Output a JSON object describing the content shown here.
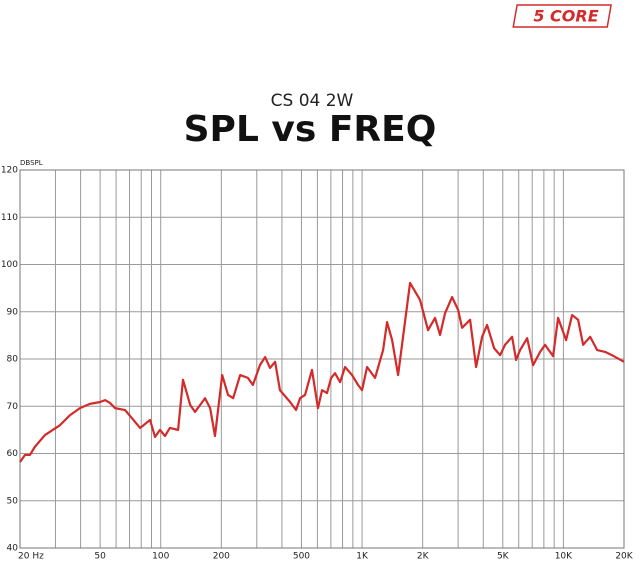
{
  "logo": "5 CORE",
  "chart_data": {
    "type": "line",
    "subtitle": "CS 04 2W",
    "title": "SPL vs FREQ",
    "y_label": "DBSPL",
    "xscale": "log",
    "grid": true,
    "xlim": [
      20,
      20000
    ],
    "ylim": [
      40,
      120
    ],
    "yticks": [
      40,
      50,
      60,
      70,
      80,
      90,
      100,
      110,
      120
    ],
    "xticks": [
      {
        "value": 20,
        "label": "20 Hz"
      },
      50,
      100,
      200,
      500,
      {
        "value": 1000,
        "label": "1K"
      },
      {
        "value": 2000,
        "label": "2K"
      },
      {
        "value": 5000,
        "label": "5K"
      },
      {
        "value": 10000,
        "label": "10K"
      },
      {
        "value": 20000,
        "label": "20K"
      }
    ],
    "xminorticks": [
      30,
      40,
      60,
      70,
      80,
      90,
      300,
      400,
      600,
      700,
      800,
      900,
      3000,
      4000,
      6000,
      7000,
      8000,
      9000
    ],
    "x": [
      20,
      21.2,
      22.4,
      23.7,
      26.6,
      31.6,
      35.4,
      39.7,
      44.5,
      50,
      52.9,
      56,
      59.3,
      66.5,
      74.5,
      79,
      88.5,
      93.7,
      99.2,
      105,
      111,
      122,
      129,
      140,
      148,
      166,
      176,
      186,
      202,
      216,
      229,
      248,
      271,
      287,
      311,
      330,
      349,
      370,
      391,
      439,
      470,
      492,
      521,
      564,
      604,
      633,
      670,
      702,
      734,
      778,
      823,
      892,
      956,
      1000,
      1059,
      1160,
      1272,
      1331,
      1410,
      1510,
      1731,
      1941,
      2127,
      2304,
      2440,
      2584,
      2800,
      3000,
      3139,
      3440,
      3685,
      3947,
      4178,
      4526,
      4849,
      5132,
      5561,
      5822,
      6095,
      6605,
      7074,
      7661,
      8110,
      8889,
      9412,
      10314,
      11047,
      11834,
      12532,
      13578,
      14708,
      16115,
      17454,
      20000
    ],
    "series": [
      {
        "name": "SPL",
        "color": "#d42a2a",
        "values": [
          58.2,
          59.7,
          59.7,
          61.4,
          63.9,
          66.0,
          68.1,
          69.6,
          70.5,
          70.9,
          71.3,
          70.7,
          69.6,
          69.2,
          66.7,
          65.4,
          67.1,
          63.5,
          65.0,
          63.7,
          65.4,
          65.0,
          75.6,
          70.3,
          68.8,
          71.7,
          69.6,
          63.7,
          76.6,
          72.4,
          71.7,
          76.6,
          76.0,
          74.5,
          78.7,
          80.4,
          78.1,
          79.4,
          73.4,
          70.9,
          69.2,
          71.7,
          72.4,
          77.7,
          69.6,
          73.4,
          72.8,
          76.0,
          77.0,
          75.1,
          78.3,
          76.6,
          74.5,
          73.4,
          78.3,
          76.0,
          81.9,
          87.8,
          84.0,
          76.6,
          96.1,
          92.5,
          86.1,
          88.7,
          85.1,
          89.7,
          93.1,
          90.4,
          86.6,
          88.3,
          78.3,
          84.7,
          87.2,
          82.3,
          80.8,
          83.0,
          84.7,
          79.8,
          81.9,
          84.4,
          78.7,
          81.5,
          83.0,
          80.6,
          88.7,
          84.0,
          89.3,
          88.3,
          83.0,
          84.7,
          81.9,
          81.5,
          80.8,
          79.4
        ]
      }
    ]
  }
}
